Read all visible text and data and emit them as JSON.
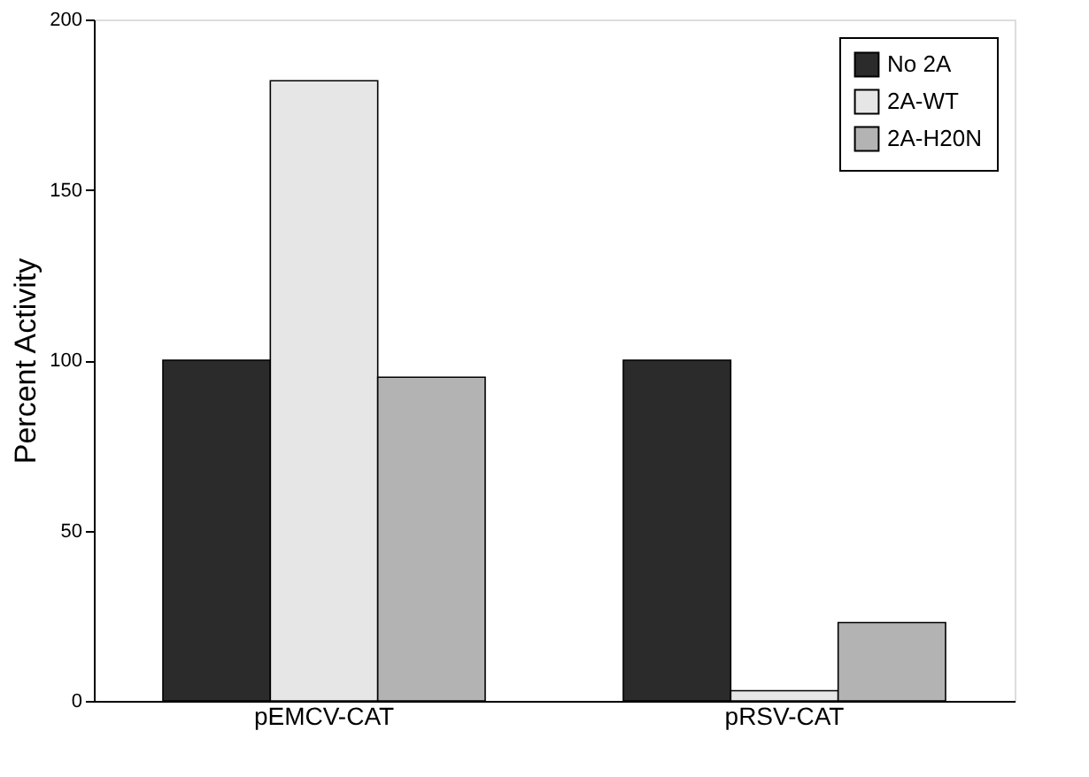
{
  "chart_data": {
    "type": "bar",
    "ylabel": "Percent Activity",
    "categories": [
      "pEMCV-CAT",
      "pRSV-CAT"
    ],
    "series": [
      {
        "name": "No 2A",
        "color": "#2b2b2b",
        "values": [
          100,
          100
        ]
      },
      {
        "name": "2A-WT",
        "color": "#e6e6e6",
        "values": [
          182,
          3
        ]
      },
      {
        "name": "2A-H20N",
        "color": "#b3b3b3",
        "values": [
          95,
          23
        ]
      }
    ],
    "ylim": [
      0,
      200
    ],
    "yticks": [
      0,
      50,
      100,
      150,
      200
    ],
    "grid": false,
    "legend": "top right"
  }
}
